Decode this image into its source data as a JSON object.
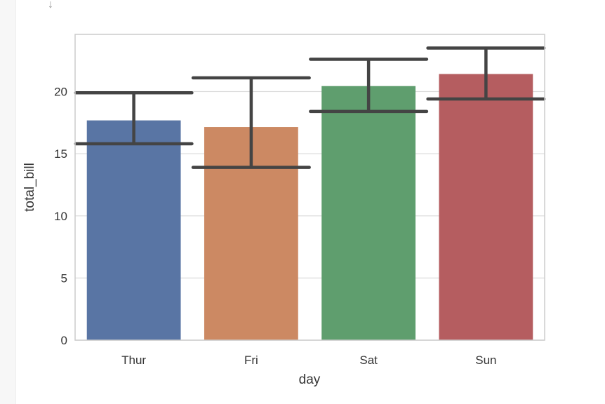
{
  "page": {
    "scroll_glyph": "↓"
  },
  "chart_data": {
    "type": "bar",
    "title": "",
    "xlabel": "day",
    "ylabel": "total_bill",
    "categories": [
      "Thur",
      "Fri",
      "Sat",
      "Sun"
    ],
    "values": [
      17.68,
      17.15,
      20.44,
      21.41
    ],
    "error_low": [
      15.8,
      13.9,
      18.4,
      19.4
    ],
    "error_high": [
      19.9,
      21.1,
      22.6,
      23.5
    ],
    "ylim": [
      0,
      24.6
    ],
    "yticks": [
      0,
      5,
      10,
      15,
      20
    ],
    "ytick_labels": [
      "0",
      "5",
      "10",
      "15",
      "20"
    ],
    "grid": true,
    "legend": "none",
    "colors": [
      "#5975a4",
      "#cc8963",
      "#5f9e6e",
      "#b55d60"
    ],
    "error_color": "#444444"
  }
}
